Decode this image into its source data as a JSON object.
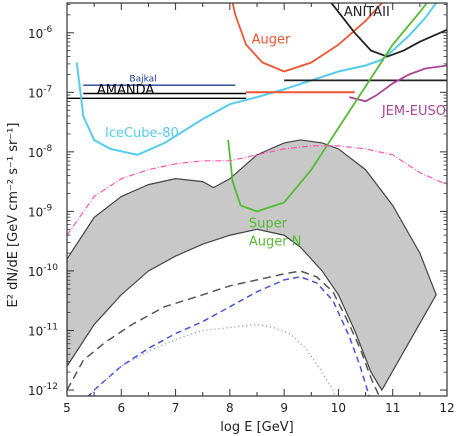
{
  "chart_data": {
    "type": "line",
    "xlabel": "log E [GeV]",
    "ylabel": "E² dN/dE [GeV cm⁻² s⁻¹ sr⁻¹]",
    "xlim": [
      5,
      12
    ],
    "ylim_log10": [
      -12,
      -5.5
    ],
    "x_ticks": [
      "5",
      "6",
      "7",
      "8",
      "9",
      "10",
      "11",
      "12"
    ],
    "y_ticks": [
      {
        "base": "10",
        "exp": "-6",
        "v": -6
      },
      {
        "base": "10",
        "exp": "-7",
        "v": -7
      },
      {
        "base": "10",
        "exp": "-8",
        "v": -8
      },
      {
        "base": "10",
        "exp": "-9",
        "v": -9
      },
      {
        "base": "10",
        "exp": "-10",
        "v": -10
      },
      {
        "base": "10",
        "exp": "-11",
        "v": -11
      },
      {
        "base": "10",
        "exp": "-12",
        "v": -12
      }
    ],
    "band": {
      "color": "#c8c8c8",
      "upper": [
        [
          5.0,
          -9.8
        ],
        [
          5.5,
          -9.1
        ],
        [
          6.0,
          -8.75
        ],
        [
          6.5,
          -8.55
        ],
        [
          7.0,
          -8.45
        ],
        [
          7.5,
          -8.5
        ],
        [
          7.7,
          -8.6
        ],
        [
          8.0,
          -8.45
        ],
        [
          8.5,
          -8.05
        ],
        [
          9.0,
          -7.85
        ],
        [
          9.3,
          -7.8
        ],
        [
          9.7,
          -7.85
        ],
        [
          10.0,
          -7.95
        ],
        [
          10.5,
          -8.3
        ],
        [
          11.0,
          -8.9
        ],
        [
          11.5,
          -9.7
        ],
        [
          11.8,
          -10.4
        ]
      ],
      "lower": [
        [
          5.0,
          -11.6
        ],
        [
          5.5,
          -10.9
        ],
        [
          6.0,
          -10.4
        ],
        [
          6.5,
          -10.0
        ],
        [
          7.0,
          -9.75
        ],
        [
          7.5,
          -9.55
        ],
        [
          8.0,
          -9.4
        ],
        [
          8.5,
          -9.3
        ],
        [
          9.0,
          -9.4
        ],
        [
          9.3,
          -9.6
        ],
        [
          9.7,
          -10.0
        ],
        [
          10.0,
          -10.4
        ],
        [
          10.3,
          -11.0
        ],
        [
          10.6,
          -11.7
        ],
        [
          10.8,
          -12.0
        ]
      ]
    },
    "series": [
      {
        "name": "Bajkal",
        "color": "#1f3f99",
        "width": 1.3,
        "dash": "",
        "points": [
          [
            5.3,
            -6.88
          ],
          [
            8.1,
            -6.88
          ]
        ]
      },
      {
        "name": "AMANDA",
        "color": "#000000",
        "width": 1.4,
        "dash": "",
        "points": [
          [
            5.0,
            -7.1
          ],
          [
            8.3,
            -7.1
          ]
        ]
      },
      {
        "name": "",
        "color": "#000000",
        "width": 1.4,
        "dash": "",
        "points": [
          [
            5.3,
            -7.02
          ],
          [
            8.3,
            -7.02
          ]
        ]
      },
      {
        "name": "IceCube-80",
        "color": "#55ccee",
        "width": 2.0,
        "dash": "",
        "points": [
          [
            5.18,
            -6.5
          ],
          [
            5.3,
            -7.4
          ],
          [
            5.5,
            -7.8
          ],
          [
            5.8,
            -7.95
          ],
          [
            6.3,
            -8.05
          ],
          [
            6.8,
            -7.85
          ],
          [
            7.5,
            -7.45
          ],
          [
            8.0,
            -7.2
          ],
          [
            8.5,
            -7.08
          ],
          [
            9.0,
            -6.95
          ],
          [
            9.5,
            -6.8
          ],
          [
            10.0,
            -6.65
          ],
          [
            10.5,
            -6.55
          ],
          [
            10.8,
            -6.45
          ],
          [
            11.0,
            -6.3
          ],
          [
            11.3,
            -6.05
          ],
          [
            11.6,
            -5.75
          ],
          [
            11.8,
            -5.5
          ]
        ]
      },
      {
        "name": "",
        "color": "#ee5533",
        "width": 2.0,
        "dash": "",
        "points": [
          [
            8.3,
            -7.0
          ],
          [
            10.3,
            -7.0
          ]
        ]
      },
      {
        "name": "Auger",
        "color": "#ee5533",
        "width": 1.8,
        "dash": "",
        "points": [
          [
            8.0,
            -5.3
          ],
          [
            8.1,
            -5.7
          ],
          [
            8.3,
            -6.2
          ],
          [
            8.6,
            -6.5
          ],
          [
            9.0,
            -6.65
          ],
          [
            9.5,
            -6.5
          ],
          [
            10.0,
            -6.2
          ],
          [
            10.5,
            -5.8
          ],
          [
            11.0,
            -5.3
          ]
        ]
      },
      {
        "name": "ANITAII",
        "color": "#222222",
        "width": 1.8,
        "dash": "",
        "points": [
          [
            9.7,
            -5.3
          ],
          [
            10.0,
            -5.65
          ],
          [
            10.3,
            -6.0
          ],
          [
            10.6,
            -6.3
          ],
          [
            10.9,
            -6.4
          ],
          [
            11.2,
            -6.3
          ],
          [
            11.5,
            -6.15
          ],
          [
            12.0,
            -5.95
          ]
        ]
      },
      {
        "name": "",
        "color": "#222222",
        "width": 1.8,
        "dash": "",
        "points": [
          [
            9.0,
            -6.8
          ],
          [
            12.0,
            -6.8
          ]
        ]
      },
      {
        "name": "JEM-EUSO",
        "color": "#aa4499",
        "width": 1.8,
        "dash": "",
        "points": [
          [
            10.2,
            -7.08
          ],
          [
            10.5,
            -7.15
          ],
          [
            10.7,
            -7.05
          ],
          [
            11.0,
            -6.85
          ],
          [
            11.3,
            -6.7
          ],
          [
            11.6,
            -6.6
          ],
          [
            12.0,
            -6.55
          ]
        ]
      },
      {
        "name": "Super Auger N",
        "color": "#55bb33",
        "width": 1.8,
        "dash": "",
        "points": [
          [
            7.97,
            -7.8
          ],
          [
            8.05,
            -8.5
          ],
          [
            8.2,
            -8.9
          ],
          [
            8.5,
            -9.0
          ],
          [
            9.0,
            -8.85
          ],
          [
            9.5,
            -8.3
          ],
          [
            10.0,
            -7.6
          ],
          [
            10.5,
            -6.9
          ],
          [
            11.0,
            -6.2
          ],
          [
            11.5,
            -5.65
          ],
          [
            11.8,
            -5.3
          ]
        ]
      },
      {
        "name": "",
        "color": "#ff55aa",
        "width": 1.2,
        "dash": "6,2,1,2",
        "points": [
          [
            5.0,
            -9.4
          ],
          [
            5.5,
            -8.75
          ],
          [
            6.0,
            -8.45
          ],
          [
            6.5,
            -8.3
          ],
          [
            7.0,
            -8.2
          ],
          [
            7.5,
            -8.15
          ],
          [
            8.0,
            -8.15
          ],
          [
            8.5,
            -8.05
          ],
          [
            9.0,
            -7.95
          ],
          [
            9.5,
            -7.9
          ],
          [
            10.0,
            -7.9
          ],
          [
            10.5,
            -7.95
          ],
          [
            11.0,
            -8.05
          ],
          [
            11.5,
            -8.35
          ],
          [
            12.0,
            -8.55
          ]
        ]
      },
      {
        "name": "",
        "color": "#555555",
        "width": 1.5,
        "dash": "8,5",
        "points": [
          [
            5.0,
            -12.0
          ],
          [
            5.3,
            -11.5
          ],
          [
            5.7,
            -11.2
          ],
          [
            6.2,
            -10.9
          ],
          [
            6.8,
            -10.6
          ],
          [
            7.5,
            -10.4
          ],
          [
            8.0,
            -10.25
          ],
          [
            8.5,
            -10.15
          ],
          [
            9.0,
            -10.05
          ],
          [
            9.3,
            -10.0
          ],
          [
            9.6,
            -10.1
          ],
          [
            9.9,
            -10.35
          ],
          [
            10.2,
            -10.9
          ],
          [
            10.4,
            -11.3
          ],
          [
            10.6,
            -11.8
          ],
          [
            10.8,
            -12.2
          ]
        ]
      },
      {
        "name": "",
        "color": "#4455dd",
        "width": 1.5,
        "dash": "6,4",
        "points": [
          [
            5.0,
            -12.5
          ],
          [
            5.5,
            -12.0
          ],
          [
            6.0,
            -11.6
          ],
          [
            6.5,
            -11.3
          ],
          [
            7.0,
            -11.05
          ],
          [
            7.5,
            -10.85
          ],
          [
            8.0,
            -10.6
          ],
          [
            8.5,
            -10.35
          ],
          [
            9.0,
            -10.15
          ],
          [
            9.3,
            -10.1
          ],
          [
            9.6,
            -10.2
          ],
          [
            9.9,
            -10.5
          ],
          [
            10.2,
            -11.1
          ],
          [
            10.4,
            -11.6
          ],
          [
            10.6,
            -12.2
          ]
        ]
      },
      {
        "name": "",
        "color": "#8888dd",
        "width": 1.3,
        "dash": "1,3",
        "points": [
          [
            5.0,
            -12.8
          ],
          [
            5.5,
            -12.0
          ],
          [
            6.0,
            -11.6
          ],
          [
            6.5,
            -11.35
          ],
          [
            7.0,
            -11.15
          ],
          [
            7.5,
            -11.0
          ],
          [
            8.0,
            -10.95
          ],
          [
            8.5,
            -10.9
          ],
          [
            8.8,
            -10.95
          ],
          [
            9.1,
            -11.05
          ],
          [
            9.4,
            -11.3
          ],
          [
            9.7,
            -11.7
          ],
          [
            9.9,
            -12.0
          ],
          [
            10.0,
            -12.3
          ]
        ]
      }
    ],
    "labels": [
      {
        "text": "Bajkal",
        "x": 6.15,
        "y": -6.82,
        "color": "#1f3f99",
        "small": true
      },
      {
        "text": "AMANDA",
        "x": 5.55,
        "y": -7.03,
        "color": "#000000",
        "small": false
      },
      {
        "text": "IceCube-80",
        "x": 5.7,
        "y": -7.75,
        "color": "#55ccee",
        "small": false
      },
      {
        "text": "Auger",
        "x": 8.4,
        "y": -6.18,
        "color": "#ee5533",
        "small": false
      },
      {
        "text": "ANITAII",
        "x": 10.1,
        "y": -5.72,
        "color": "#222222",
        "small": false
      },
      {
        "text": "JEM-EUSO",
        "x": 10.8,
        "y": -7.38,
        "color": "#aa4499",
        "small": false
      },
      {
        "text": "Super",
        "x": 8.35,
        "y": -9.27,
        "color": "#55bb33",
        "small": false
      },
      {
        "text": "Auger N",
        "x": 8.35,
        "y": -9.57,
        "color": "#55bb33",
        "small": false
      }
    ]
  }
}
